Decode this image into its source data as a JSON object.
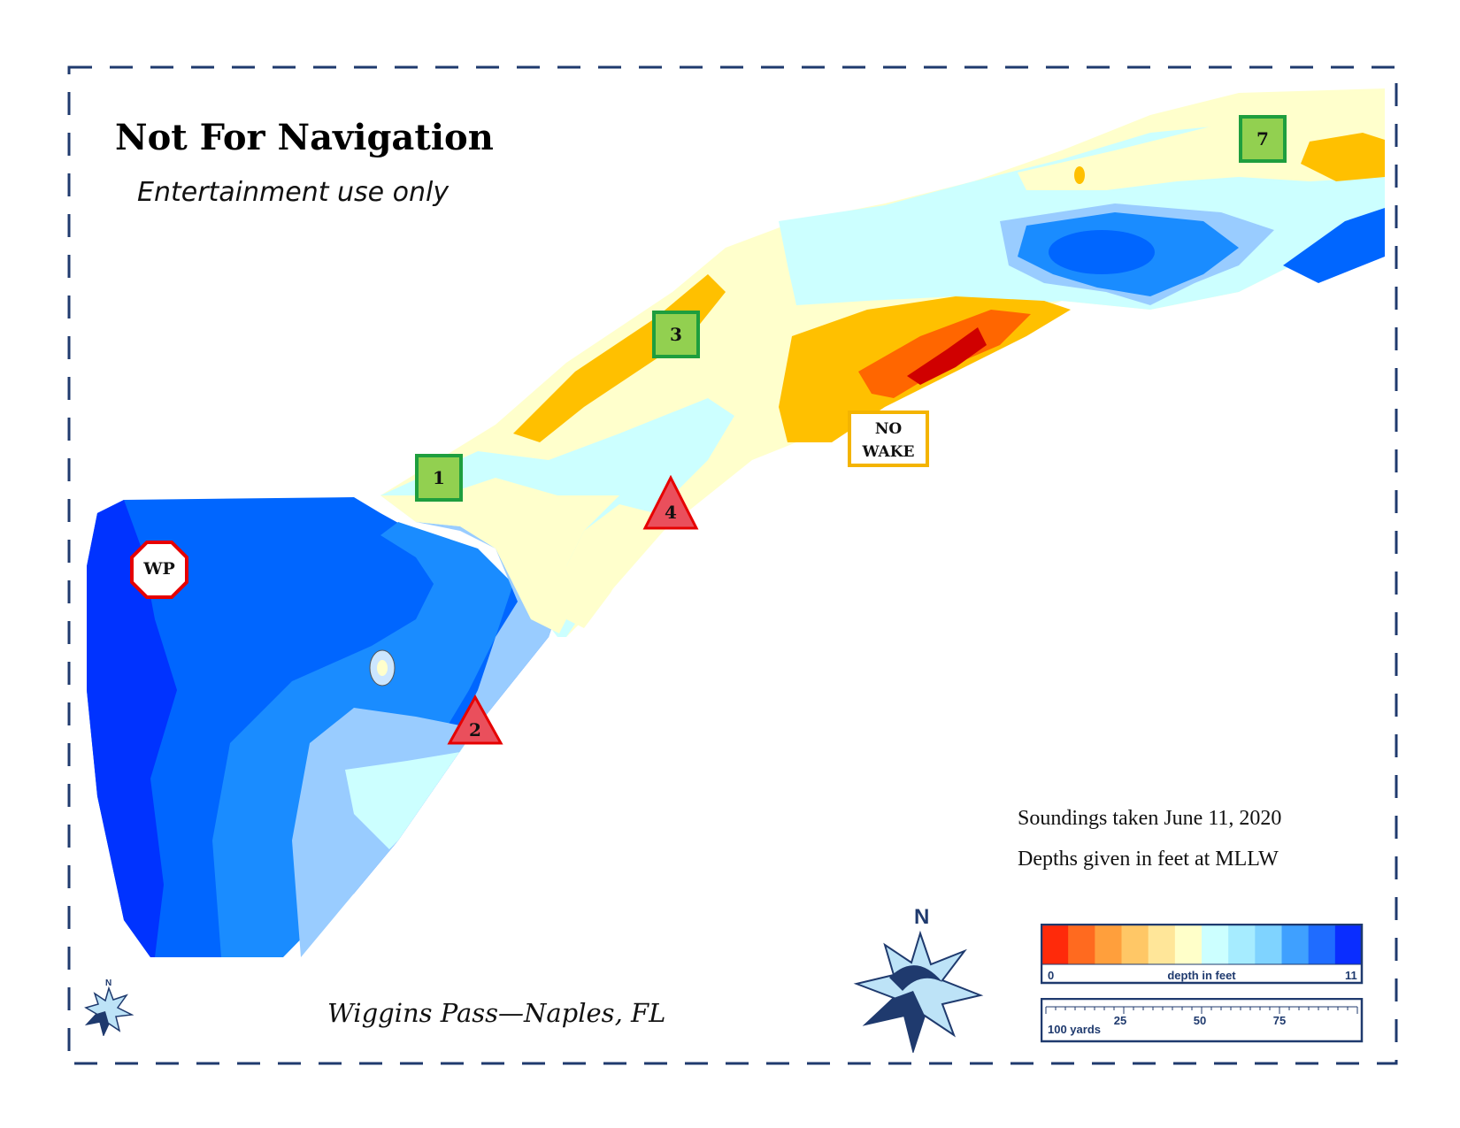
{
  "map": {
    "title": "Not For Navigation",
    "subtitle": "Entertainment use only",
    "location": "Wiggins Pass—Naples, FL",
    "notes": {
      "soundings": "Soundings taken June 11, 2020",
      "depths": "Depths given in feet at MLLW"
    },
    "markers": {
      "green_1": "1",
      "green_3": "3",
      "green_7": "7",
      "red_2": "2",
      "red_4": "4",
      "wp": "WP",
      "no_wake_line1": "NO",
      "no_wake_line2": "WAKE"
    },
    "compass": {
      "north_label": "N"
    },
    "legend": {
      "depth_min": "0",
      "depth_label": "depth in feet",
      "depth_max": "11",
      "colors": [
        "#ff2a0a",
        "#ff6a1f",
        "#ff9f3c",
        "#ffc766",
        "#ffe699",
        "#ffffc9",
        "#ccffff",
        "#a6ecff",
        "#7fd3ff",
        "#3fa0ff",
        "#1f6cff",
        "#0a2dff"
      ]
    },
    "scale": {
      "unit_label": "100 yards",
      "ticks": [
        "25",
        "50",
        "75"
      ]
    },
    "depth_colors": {
      "shallow_red": "#d00000",
      "orange": "#ff6600",
      "amber": "#ffc000",
      "pale_yellow": "#ffffcc",
      "pale_cyan": "#ccffff",
      "light_blue": "#99ccff",
      "mid_blue": "#0080ff",
      "deep_blue": "#0050f0",
      "deepest_blue": "#0033ff"
    }
  }
}
